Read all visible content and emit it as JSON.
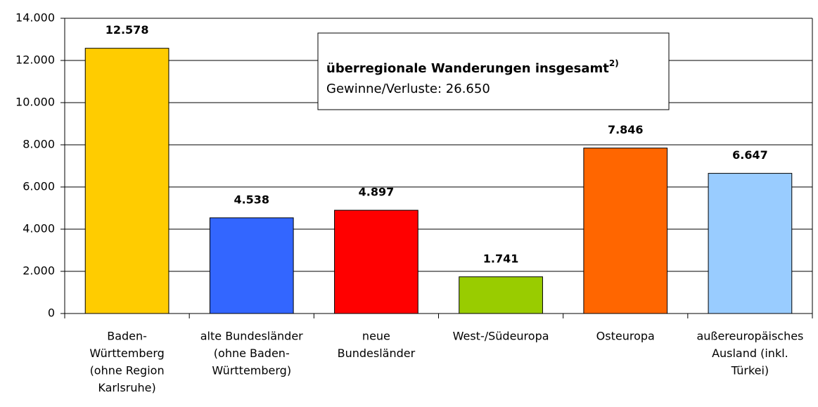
{
  "chart_data": {
    "type": "bar",
    "categories": [
      [
        "Baden-",
        "Württemberg",
        "(ohne Region",
        "Karlsruhe)"
      ],
      [
        "alte Bundesländer",
        "(ohne Baden-",
        "Württemberg)"
      ],
      [
        "neue",
        "Bundesländer"
      ],
      [
        "West-/Südeuropa"
      ],
      [
        "Osteuropa"
      ],
      [
        "außereuropäisches",
        "Ausland (inkl.",
        "Türkei)"
      ]
    ],
    "values": [
      12578,
      4538,
      4897,
      1741,
      7846,
      6647
    ],
    "value_labels": [
      "12.578",
      "4.538",
      "4.897",
      "1.741",
      "7.846",
      "6.647"
    ],
    "colors": [
      "#ffcc00",
      "#3366ff",
      "#ff0000",
      "#99cc00",
      "#ff6600",
      "#99ccff"
    ],
    "ylim": [
      0,
      14000
    ],
    "yticks": [
      0,
      {
        "value": 2000,
        "label": "2.000"
      },
      {
        "value": 4000,
        "label": "4.000"
      },
      {
        "value": 6000,
        "label": "6.000"
      },
      {
        "value": 8000,
        "label": "8.000"
      },
      {
        "value": 10000,
        "label": "10.000"
      },
      {
        "value": 12000,
        "label": "12.000"
      },
      {
        "value": 14000,
        "label": "14.000"
      }
    ],
    "grid": true,
    "annotation": {
      "title": "überregionale Wanderungen insgesamt",
      "footnote": "2)",
      "text": "Gewinne/Verluste: 26.650"
    }
  }
}
